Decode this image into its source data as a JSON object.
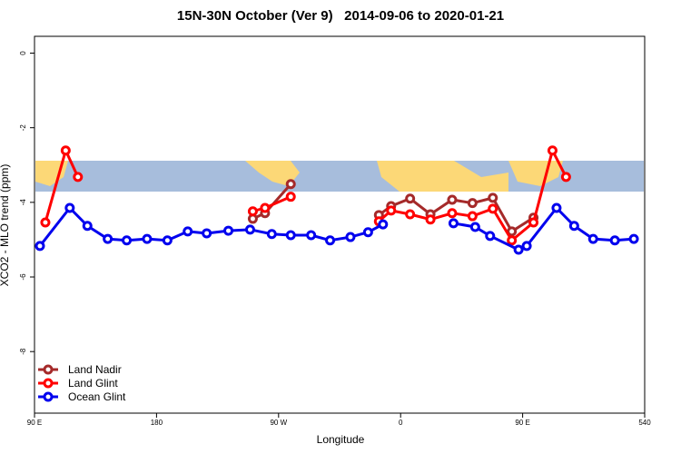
{
  "chart_data": {
    "type": "line",
    "title": "15N-30N October (Ver 9)   2014-09-06 to 2020-01-21",
    "x_label": "Longitude",
    "y_label": "XCO2 - MLO trend (ppm)",
    "xlim": [
      90,
      540
    ],
    "ylim": [
      -9.65,
      0.45
    ],
    "xticks": [
      {
        "value": 90,
        "label": "90 E"
      },
      180,
      {
        "value": 270,
        "label": "90 W"
      },
      {
        "value": 360,
        "label": "0"
      },
      {
        "value": 450,
        "label": "90 E"
      },
      540
    ],
    "yticks": [
      0,
      -2,
      -4,
      -6,
      -8
    ],
    "legend": "bottom-left",
    "series": [
      {
        "name": "Land Nadir",
        "color": "#a52a2a",
        "x": [
          251,
          260,
          279,
          311,
          344,
          353,
          367,
          382,
          398,
          413,
          428,
          442,
          458
        ],
        "values": [
          -4.44,
          -4.29,
          -3.51,
          null,
          -4.34,
          -4.1,
          -3.9,
          -4.32,
          -3.93,
          -4.02,
          -3.88,
          -4.78,
          -4.41
        ]
      },
      {
        "name": "Land Glint",
        "color": "#ff0000",
        "x": [
          98,
          113,
          122,
          186,
          251,
          260,
          279,
          311,
          344,
          353,
          367,
          382,
          398,
          413,
          428,
          442,
          458,
          472,
          482
        ],
        "values": [
          -4.54,
          -2.61,
          -3.32,
          null,
          -4.24,
          -4.15,
          -3.85,
          null,
          -4.51,
          -4.22,
          -4.32,
          -4.46,
          -4.29,
          -4.37,
          -4.17,
          -5.02,
          -4.54,
          -2.61,
          -3.32
        ]
      },
      {
        "name": "Ocean Glint",
        "color": "#0000ee",
        "x": [
          94,
          116,
          129,
          144,
          158,
          173,
          188,
          203,
          217,
          233,
          249,
          265,
          279,
          294,
          308,
          323,
          336,
          347,
          373,
          399,
          415,
          426,
          447,
          453,
          475,
          488,
          502,
          518,
          532
        ],
        "values": [
          -5.17,
          -4.15,
          -4.63,
          -4.98,
          -5.02,
          -4.98,
          -5.02,
          -4.78,
          -4.83,
          -4.76,
          -4.73,
          -4.85,
          -4.88,
          -4.88,
          -5.02,
          -4.93,
          -4.8,
          -4.59,
          null,
          -4.56,
          -4.66,
          -4.9,
          -5.27,
          -5.17,
          -4.15,
          -4.63,
          -4.98,
          -5.02,
          -4.98
        ]
      }
    ]
  }
}
